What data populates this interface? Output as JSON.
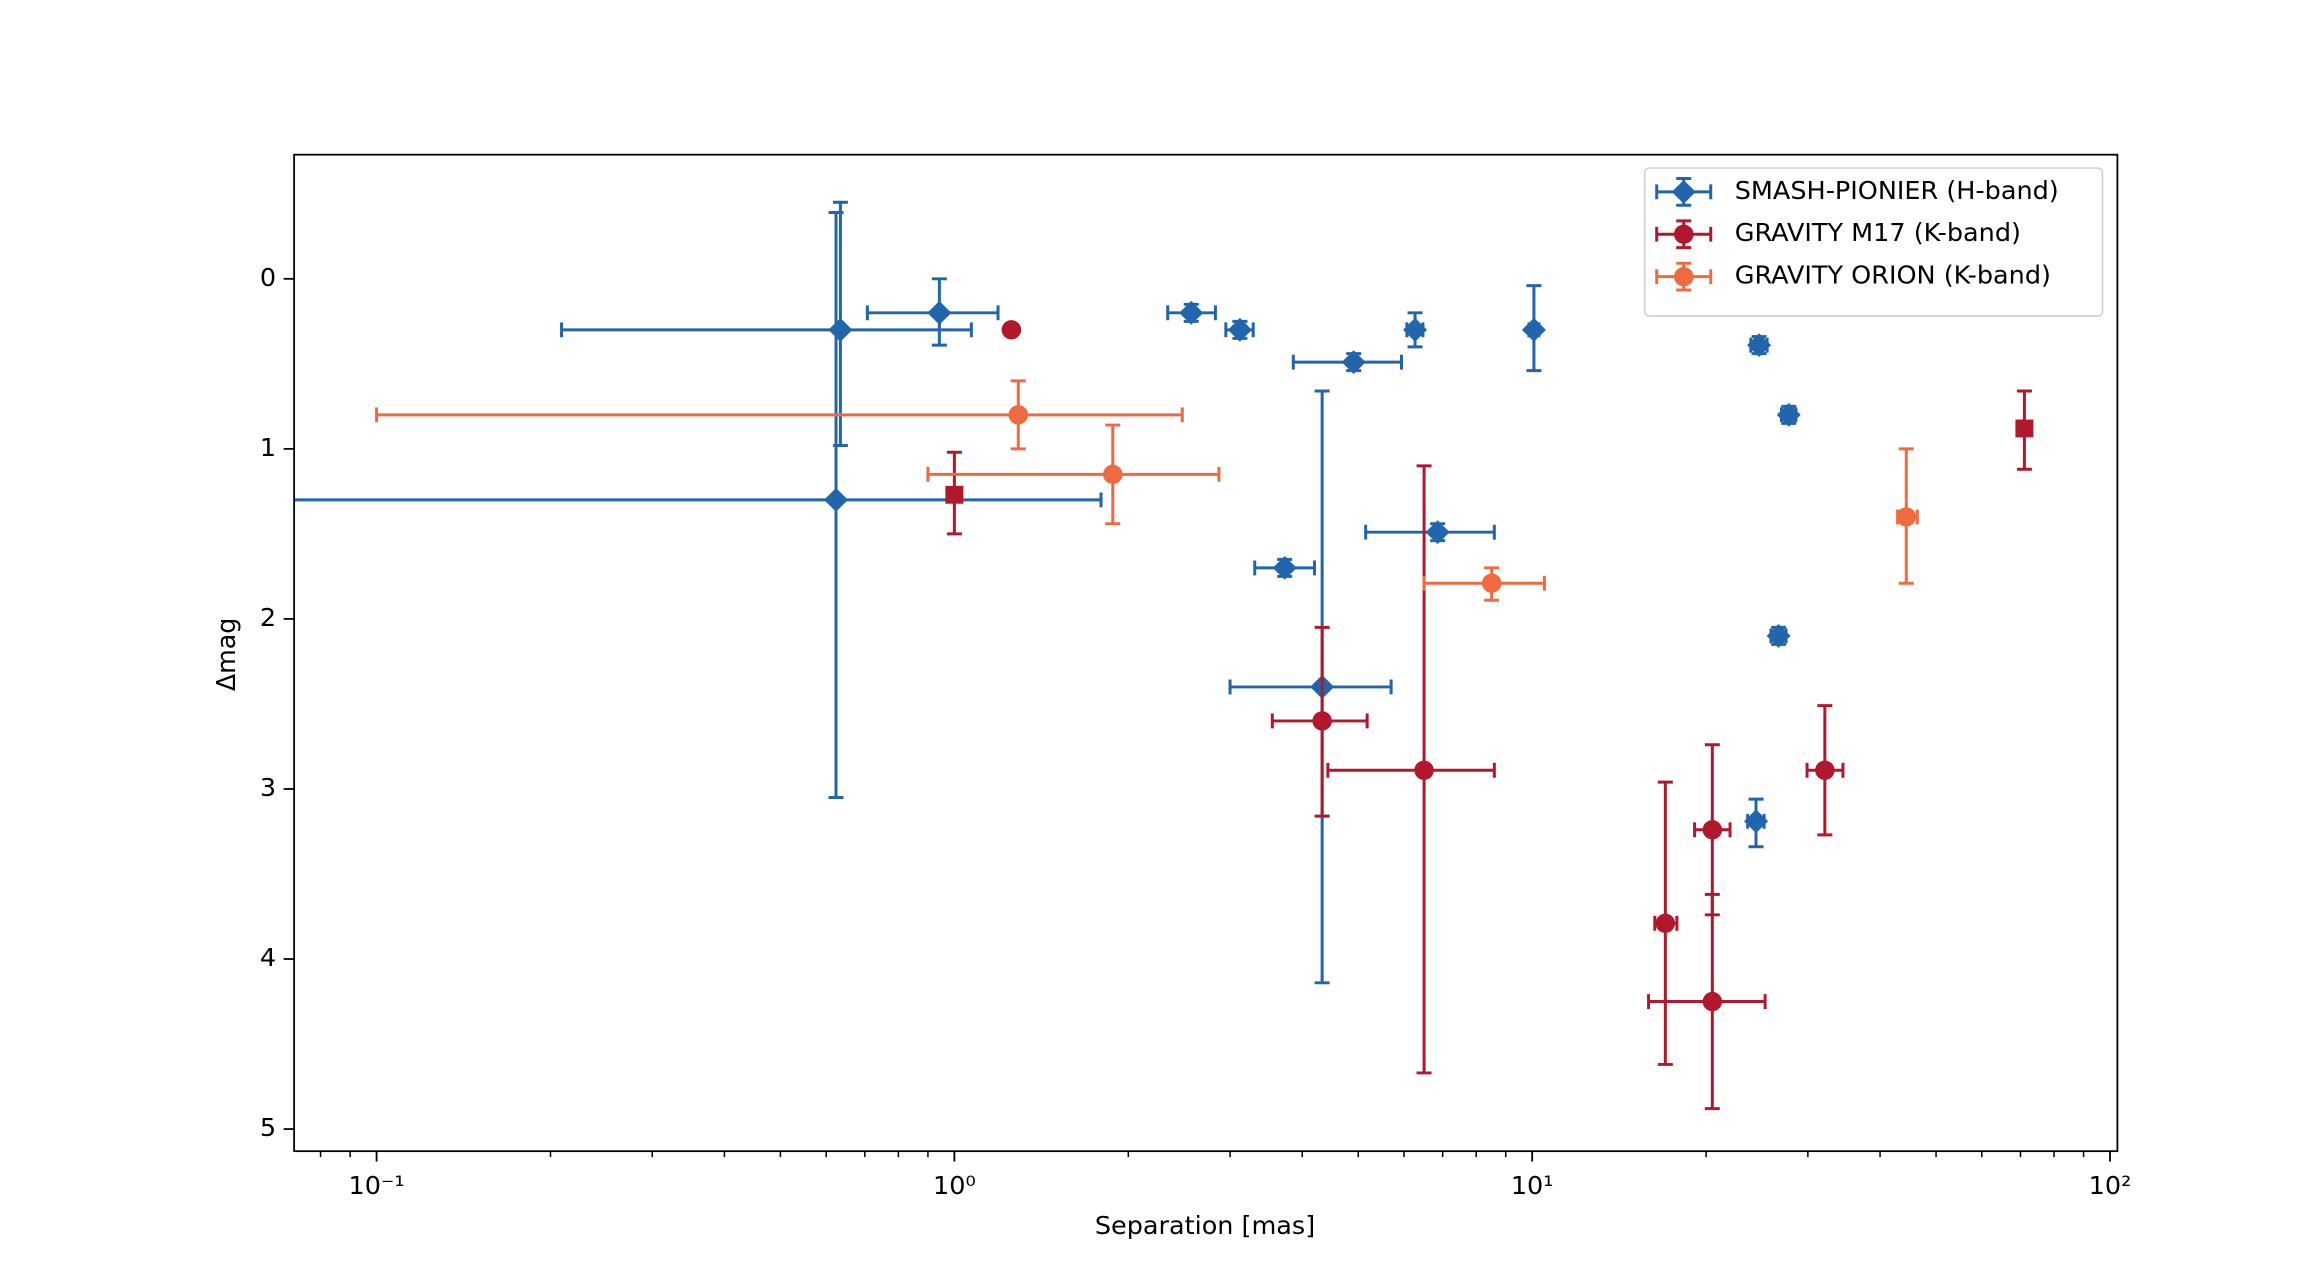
{
  "chart_data": {
    "type": "errorbar",
    "x_label": "Separation [mas]",
    "y_label": "Δmag",
    "xscale": "log",
    "xlim": [
      0.072,
      103
    ],
    "ylim": [
      5.13,
      -0.73
    ],
    "xticks": [
      {
        "value": 0.1,
        "label": "10⁻¹"
      },
      {
        "value": 1,
        "label": "10⁰"
      },
      {
        "value": 10,
        "label": "10¹"
      },
      {
        "value": 100,
        "label": "10²"
      }
    ],
    "xminor": [
      0.08,
      0.09,
      0.2,
      0.3,
      0.4,
      0.5,
      0.6,
      0.7,
      0.8,
      0.9,
      2,
      3,
      4,
      5,
      6,
      7,
      8,
      9,
      20,
      30,
      40,
      50,
      60,
      70,
      80,
      90
    ],
    "yticks": [
      0,
      1,
      2,
      3,
      4,
      5
    ],
    "legend": "upper right",
    "series": [
      {
        "name": "SMASH-PIONIER (H-band)",
        "color": "#2166ac",
        "marker": "diamond",
        "x": [
          0.635,
          0.942,
          0.624,
          2.57,
          3.12,
          4.91,
          6.27,
          10.07,
          24.7,
          27.8,
          6.86,
          3.73,
          4.33,
          26.7,
          24.4
        ],
        "y": [
          0.3,
          0.2,
          1.3,
          0.2,
          0.3,
          0.49,
          0.3,
          0.3,
          0.39,
          0.8,
          1.49,
          1.7,
          2.4,
          2.1,
          3.19
        ],
        "xerr_low": [
          0.426,
          0.235,
          0.6,
          0.23,
          0.17,
          1.05,
          0.2,
          0.2,
          0.8,
          0.8,
          1.71,
          0.42,
          1.33,
          0.8,
          0.8
        ],
        "xerr_high": [
          0.435,
          0.248,
          1.17,
          0.26,
          0.17,
          1.03,
          0.2,
          0.2,
          0.8,
          0.8,
          1.74,
          0.47,
          1.37,
          0.8,
          0.8
        ],
        "yerr_low": [
          0.75,
          0.2,
          1.69,
          0.05,
          0.05,
          0.05,
          0.1,
          0.26,
          0.05,
          0.05,
          0.05,
          0.05,
          1.74,
          0.05,
          0.13
        ],
        "yerr_high": [
          0.68,
          0.19,
          1.75,
          0.05,
          0.05,
          0.05,
          0.1,
          0.24,
          0.05,
          0.05,
          0.05,
          0.05,
          1.74,
          0.05,
          0.15
        ]
      },
      {
        "name": "GRAVITY M17 (K-band)",
        "color": "#b2182b",
        "marker": "circle",
        "markers": [
          "circle",
          "square",
          "square",
          "circle",
          "circle",
          "circle",
          "circle",
          "circle",
          "circle"
        ],
        "x": [
          1.255,
          1.0,
          71.1,
          4.33,
          6.5,
          32.1,
          20.5,
          17.0,
          20.5
        ],
        "y": [
          0.3,
          1.27,
          0.88,
          2.6,
          2.89,
          2.89,
          3.24,
          3.79,
          4.25
        ],
        "xerr_low": [
          0,
          0,
          0,
          0.78,
          2.07,
          2.2,
          1.4,
          0.7,
          4.6
        ],
        "xerr_high": [
          0,
          0,
          0,
          0.85,
          2.1,
          2.4,
          1.5,
          0.8,
          4.8
        ],
        "yerr_low": [
          0,
          0.25,
          0.22,
          0.55,
          1.79,
          0.38,
          0.5,
          0.83,
          0.63
        ],
        "yerr_high": [
          0,
          0.23,
          0.24,
          0.56,
          1.78,
          0.38,
          0.5,
          0.83,
          0.63
        ]
      },
      {
        "name": "GRAVITY ORION (K-band)",
        "color": "#f06a40",
        "marker": "circle",
        "x": [
          1.29,
          1.88,
          8.51,
          44.4
        ],
        "y": [
          0.8,
          1.15,
          1.79,
          1.4
        ],
        "xerr_low": [
          1.19,
          0.98,
          2.01,
          1.5
        ],
        "xerr_high": [
          1.19,
          0.99,
          1.99,
          2.0
        ],
        "yerr_low": [
          0.2,
          0.29,
          0.09,
          0.4
        ],
        "yerr_high": [
          0.2,
          0.29,
          0.1,
          0.39
        ]
      }
    ]
  }
}
